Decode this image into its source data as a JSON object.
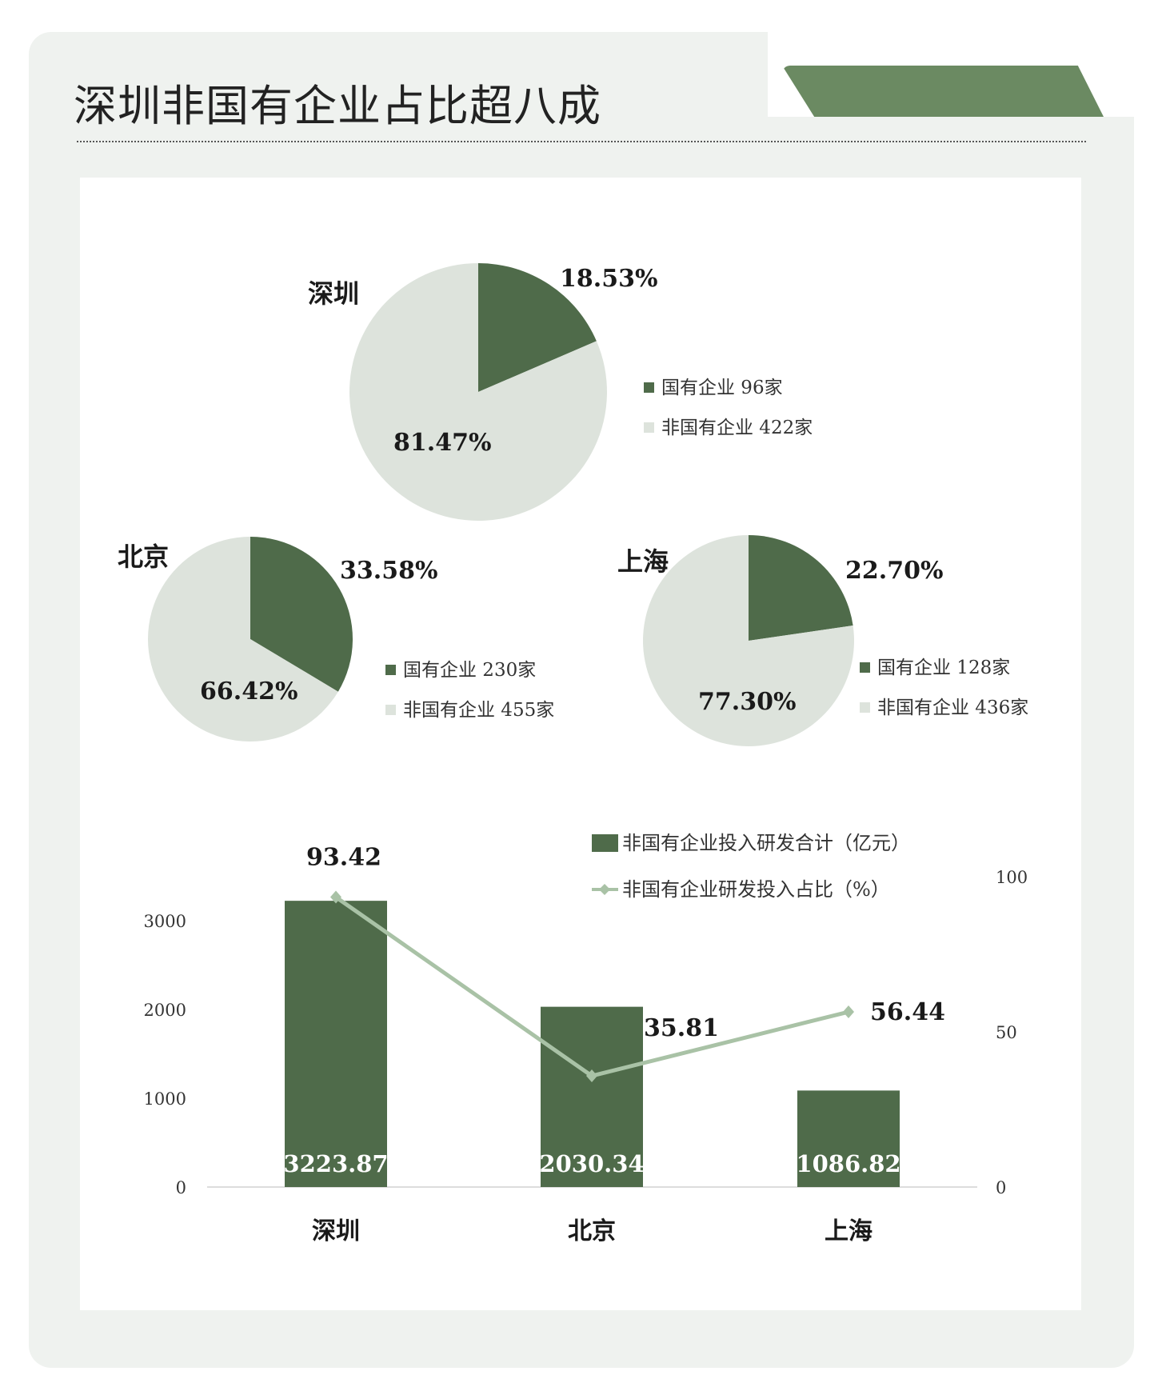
{
  "title": "深圳非国有企业占比超八成",
  "colors": {
    "dark": "#4f6b4a",
    "light": "#dde3dc",
    "line": "#a9c2a6",
    "tab": "#6b8a62",
    "card": "#eff2ef"
  },
  "chart_data": [
    {
      "type": "pie",
      "title": "深圳",
      "slices": [
        {
          "label": "国有企业 96家",
          "value": 18.53,
          "pct_label": "18.53%"
        },
        {
          "label": "非国有企业 422家",
          "value": 81.47,
          "pct_label": "81.47%"
        }
      ]
    },
    {
      "type": "pie",
      "title": "北京",
      "slices": [
        {
          "label": "国有企业 230家",
          "value": 33.58,
          "pct_label": "33.58%"
        },
        {
          "label": "非国有企业 455家",
          "value": 66.42,
          "pct_label": "66.42%"
        }
      ]
    },
    {
      "type": "pie",
      "title": "上海",
      "slices": [
        {
          "label": "国有企业 128家",
          "value": 22.7,
          "pct_label": "22.70%"
        },
        {
          "label": "非国有企业 436家",
          "value": 77.3,
          "pct_label": "77.30%"
        }
      ]
    },
    {
      "type": "bar+line",
      "categories": [
        "深圳",
        "北京",
        "上海"
      ],
      "series": [
        {
          "name": "非国有企业投入研发合计（亿元）",
          "type": "bar",
          "axis": "left",
          "values": [
            3223.87,
            2030.34,
            1086.82
          ]
        },
        {
          "name": "非国有企业研发投入占比（%）",
          "type": "line",
          "axis": "right",
          "values": [
            93.42,
            35.81,
            56.44
          ]
        }
      ],
      "y_left": {
        "ticks": [
          0,
          1000,
          2000,
          3000
        ]
      },
      "y_right": {
        "ticks": [
          0,
          50,
          100
        ]
      },
      "legend": "top-right"
    }
  ]
}
